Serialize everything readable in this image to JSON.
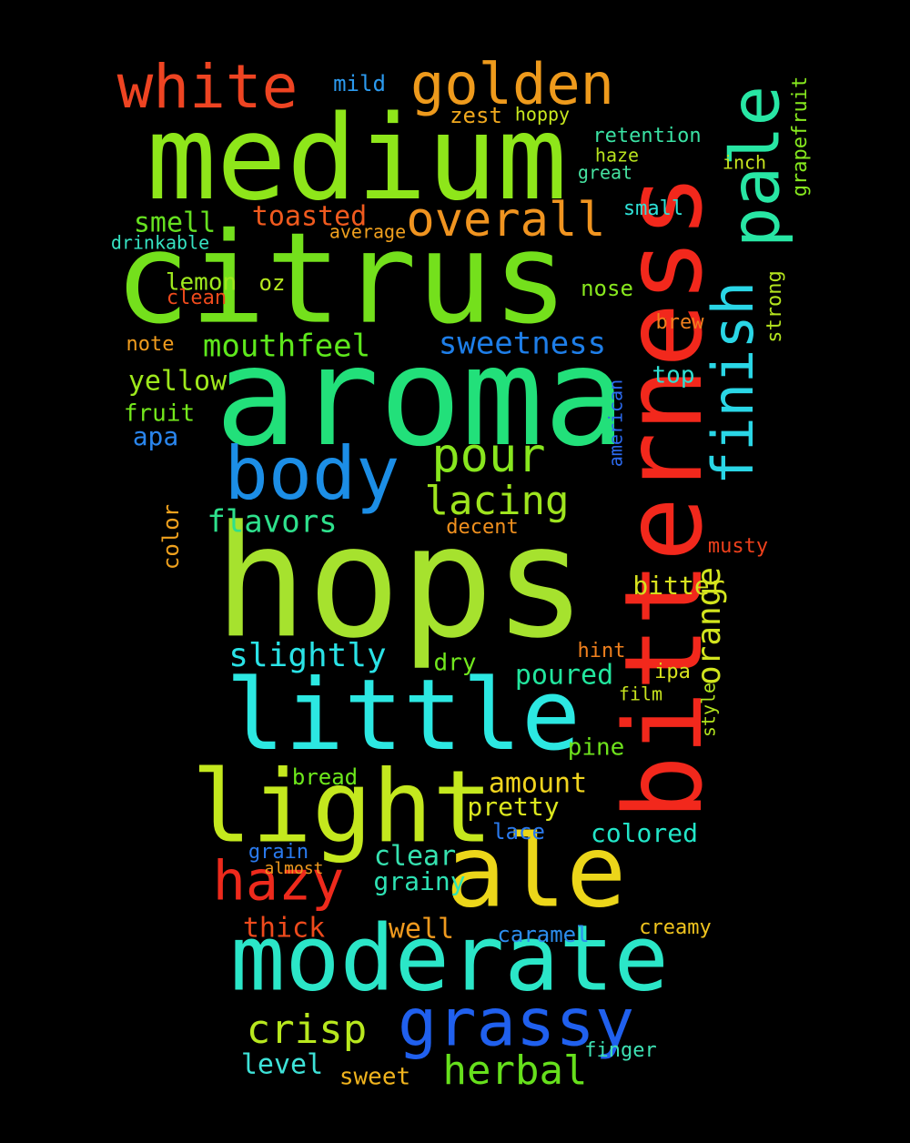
{
  "words": [
    {
      "text": "hops",
      "color": "#a6e22e"
    },
    {
      "text": "aroma",
      "color": "#22e07a"
    },
    {
      "text": "bitterness",
      "color": "#f2281c"
    },
    {
      "text": "medium",
      "color": "#8ee61a"
    },
    {
      "text": "citrus",
      "color": "#74e01c"
    },
    {
      "text": "moderate",
      "color": "#2be6c8"
    },
    {
      "text": "little",
      "color": "#2ce8e2"
    },
    {
      "text": "light",
      "color": "#c4e81e"
    },
    {
      "text": "ale",
      "color": "#ecd61a"
    },
    {
      "text": "grassy",
      "color": "#2060ee"
    },
    {
      "text": "body",
      "color": "#1c8ee6"
    },
    {
      "text": "white",
      "color": "#ee4422"
    },
    {
      "text": "golden",
      "color": "#ee9a1c"
    },
    {
      "text": "pale",
      "color": "#28e6a4"
    },
    {
      "text": "finish",
      "color": "#2ad6e6"
    },
    {
      "text": "overall",
      "color": "#f09420"
    },
    {
      "text": "pour",
      "color": "#88e61e"
    },
    {
      "text": "hazy",
      "color": "#ee2a1c"
    },
    {
      "text": "herbal",
      "color": "#66e01c"
    },
    {
      "text": "crisp",
      "color": "#b8e81e"
    },
    {
      "text": "lacing",
      "color": "#9ee41e"
    },
    {
      "text": "slightly",
      "color": "#2ae2e6"
    },
    {
      "text": "sweetness",
      "color": "#1e7ee8"
    },
    {
      "text": "mouthfeel",
      "color": "#5ee81c"
    },
    {
      "text": "orange",
      "color": "#d2e41e"
    },
    {
      "text": "flavors",
      "color": "#2ee08c"
    },
    {
      "text": "smell",
      "color": "#66e020"
    },
    {
      "text": "toasted",
      "color": "#f05a1e"
    },
    {
      "text": "yellow",
      "color": "#9ee81c"
    },
    {
      "text": "poured",
      "color": "#22e69e"
    },
    {
      "text": "amount",
      "color": "#f0d41e"
    },
    {
      "text": "clear",
      "color": "#36e2b0"
    },
    {
      "text": "well",
      "color": "#f09a1e"
    },
    {
      "text": "level",
      "color": "#3ee2d8"
    },
    {
      "text": "thick",
      "color": "#ee4a1c"
    },
    {
      "text": "grainy",
      "color": "#2ee2b4"
    },
    {
      "text": "colored",
      "color": "#22e6c8"
    },
    {
      "text": "pretty",
      "color": "#dce81e"
    },
    {
      "text": "bitter",
      "color": "#d8e21e"
    },
    {
      "text": "lemon",
      "color": "#9ee81e"
    },
    {
      "text": "fruit",
      "color": "#74e81c"
    },
    {
      "text": "apa",
      "color": "#2a86ee"
    },
    {
      "text": "grapefruit",
      "color": "#86e81e"
    },
    {
      "text": "strong",
      "color": "#b4e41e"
    },
    {
      "text": "retention",
      "color": "#3ae2a4"
    },
    {
      "text": "sweet",
      "color": "#f0b41e"
    },
    {
      "text": "pine",
      "color": "#6ee21c"
    },
    {
      "text": "creamy",
      "color": "#f0c41e"
    },
    {
      "text": "caramel",
      "color": "#2c8eee"
    },
    {
      "text": "color",
      "color": "#f0a21e"
    },
    {
      "text": "nose",
      "color": "#88e81e"
    },
    {
      "text": "zest",
      "color": "#f0a81e"
    },
    {
      "text": "mild",
      "color": "#2c9aee"
    },
    {
      "text": "top",
      "color": "#2ee2d4"
    },
    {
      "text": "bread",
      "color": "#6ee81c"
    },
    {
      "text": "lace",
      "color": "#2a7aee"
    },
    {
      "text": "dry",
      "color": "#72e81e"
    },
    {
      "text": "hint",
      "color": "#f0801e"
    },
    {
      "text": "finger",
      "color": "#3ee2b4"
    },
    {
      "text": "drinkable",
      "color": "#36e2c2"
    },
    {
      "text": "small",
      "color": "#2ee2d8"
    },
    {
      "text": "oz",
      "color": "#b6e81e"
    },
    {
      "text": "clean",
      "color": "#ee4a1c"
    },
    {
      "text": "average",
      "color": "#f0a01e"
    },
    {
      "text": "note",
      "color": "#f09c1e"
    },
    {
      "text": "hoppy",
      "color": "#c8e81e"
    },
    {
      "text": "ipa",
      "color": "#d8e21e"
    },
    {
      "text": "brew",
      "color": "#f0801e"
    },
    {
      "text": "musty",
      "color": "#ee401c"
    },
    {
      "text": "decent",
      "color": "#f0901e"
    },
    {
      "text": "film",
      "color": "#c8e41e"
    },
    {
      "text": "grain",
      "color": "#2a7aee"
    },
    {
      "text": "style",
      "color": "#b2e41e"
    },
    {
      "text": "almost",
      "color": "#f09a1e"
    },
    {
      "text": "american",
      "color": "#2c6aee"
    },
    {
      "text": "haze",
      "color": "#b8e21e"
    },
    {
      "text": "great",
      "color": "#46e2a0"
    },
    {
      "text": "inch",
      "color": "#c8e41e"
    }
  ]
}
